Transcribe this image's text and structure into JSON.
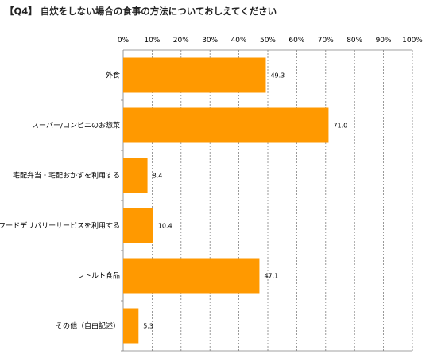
{
  "chart_data": {
    "type": "bar",
    "orientation": "horizontal",
    "title": "【Q4】 自炊をしない場合の食事の方法についておしえてください",
    "xlim": [
      0,
      100
    ],
    "x_ticks": [
      "0%",
      "10%",
      "20%",
      "30%",
      "40%",
      "50%",
      "60%",
      "70%",
      "80%",
      "90%",
      "100%"
    ],
    "x_axis_position": "top",
    "grid": true,
    "categories": [
      "外食",
      "スーパー/コンビニのお惣菜",
      "宅配弁当・宅配おかずを利用する",
      "フードデリバリーサービスを利用する",
      "レトルト食品",
      "その他（自由記述）"
    ],
    "values": [
      49.3,
      71.0,
      8.4,
      10.4,
      47.1,
      5.3
    ],
    "value_labels": [
      "49.3",
      "71.0",
      "8.4",
      "10.4",
      "47.1",
      "5.3"
    ],
    "bar_color": "#FF9900",
    "grid_color": "#808080"
  }
}
